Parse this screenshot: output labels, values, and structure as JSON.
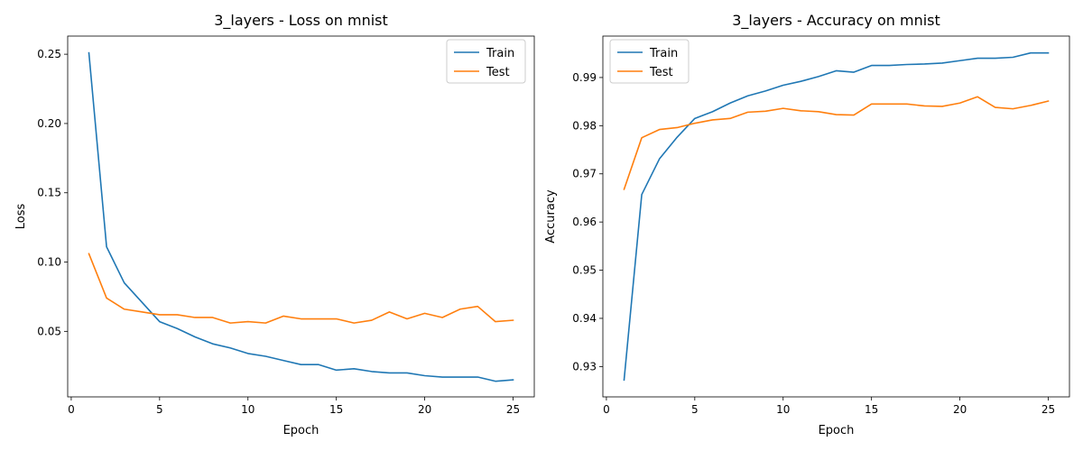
{
  "colors": {
    "train": "#1f77b4",
    "test": "#ff7f0e"
  },
  "chart_data": [
    {
      "type": "line",
      "title": "3_layers - Loss on mnist",
      "xlabel": "Epoch",
      "ylabel": "Loss",
      "xlim": [
        -0.2,
        26.2
      ],
      "ylim": [
        0.0027,
        0.2631
      ],
      "xticks": [
        0,
        5,
        10,
        15,
        20,
        25
      ],
      "yticks": [
        0.05,
        0.1,
        0.15,
        0.2,
        0.25
      ],
      "ytick_labels": [
        "0.05",
        "0.10",
        "0.15",
        "0.20",
        "0.25"
      ],
      "legend": "top-right",
      "grid": false,
      "x": [
        1,
        2,
        3,
        4,
        5,
        6,
        7,
        8,
        9,
        10,
        11,
        12,
        13,
        14,
        15,
        16,
        17,
        18,
        19,
        20,
        21,
        22,
        23,
        24,
        25
      ],
      "series": [
        {
          "name": "Train",
          "values": [
            0.251,
            0.111,
            0.085,
            0.071,
            0.057,
            0.052,
            0.046,
            0.041,
            0.038,
            0.034,
            0.032,
            0.029,
            0.026,
            0.026,
            0.022,
            0.023,
            0.021,
            0.02,
            0.02,
            0.018,
            0.017,
            0.017,
            0.017,
            0.014,
            0.015
          ]
        },
        {
          "name": "Test",
          "values": [
            0.106,
            0.074,
            0.066,
            0.064,
            0.062,
            0.062,
            0.06,
            0.06,
            0.056,
            0.057,
            0.056,
            0.061,
            0.059,
            0.059,
            0.059,
            0.056,
            0.058,
            0.064,
            0.059,
            0.063,
            0.06,
            0.066,
            0.068,
            0.057,
            0.058
          ]
        }
      ]
    },
    {
      "type": "line",
      "title": "3_layers - Accuracy on mnist",
      "xlabel": "Epoch",
      "ylabel": "Accuracy",
      "xlim": [
        -0.2,
        26.2
      ],
      "ylim": [
        0.9237,
        0.9986
      ],
      "xticks": [
        0,
        5,
        10,
        15,
        20,
        25
      ],
      "yticks": [
        0.93,
        0.94,
        0.95,
        0.96,
        0.97,
        0.98,
        0.99
      ],
      "ytick_labels": [
        "0.93",
        "0.94",
        "0.95",
        "0.96",
        "0.97",
        "0.98",
        "0.99"
      ],
      "legend": "top-left",
      "grid": false,
      "x": [
        1,
        2,
        3,
        4,
        5,
        6,
        7,
        8,
        9,
        10,
        11,
        12,
        13,
        14,
        15,
        16,
        17,
        18,
        19,
        20,
        21,
        22,
        23,
        24,
        25
      ],
      "series": [
        {
          "name": "Train",
          "values": [
            0.9272,
            0.9657,
            0.9731,
            0.9776,
            0.9815,
            0.9829,
            0.9847,
            0.9862,
            0.9872,
            0.9884,
            0.9892,
            0.9902,
            0.9914,
            0.9911,
            0.9925,
            0.9925,
            0.9927,
            0.9928,
            0.993,
            0.9935,
            0.994,
            0.994,
            0.9942,
            0.9951,
            0.9951
          ]
        },
        {
          "name": "Test",
          "values": [
            0.9668,
            0.9775,
            0.9792,
            0.9796,
            0.9805,
            0.9812,
            0.9815,
            0.9828,
            0.983,
            0.9836,
            0.9831,
            0.9829,
            0.9823,
            0.9822,
            0.9845,
            0.9845,
            0.9845,
            0.9841,
            0.984,
            0.9847,
            0.986,
            0.9838,
            0.9835,
            0.9842,
            0.9851
          ]
        }
      ]
    }
  ]
}
